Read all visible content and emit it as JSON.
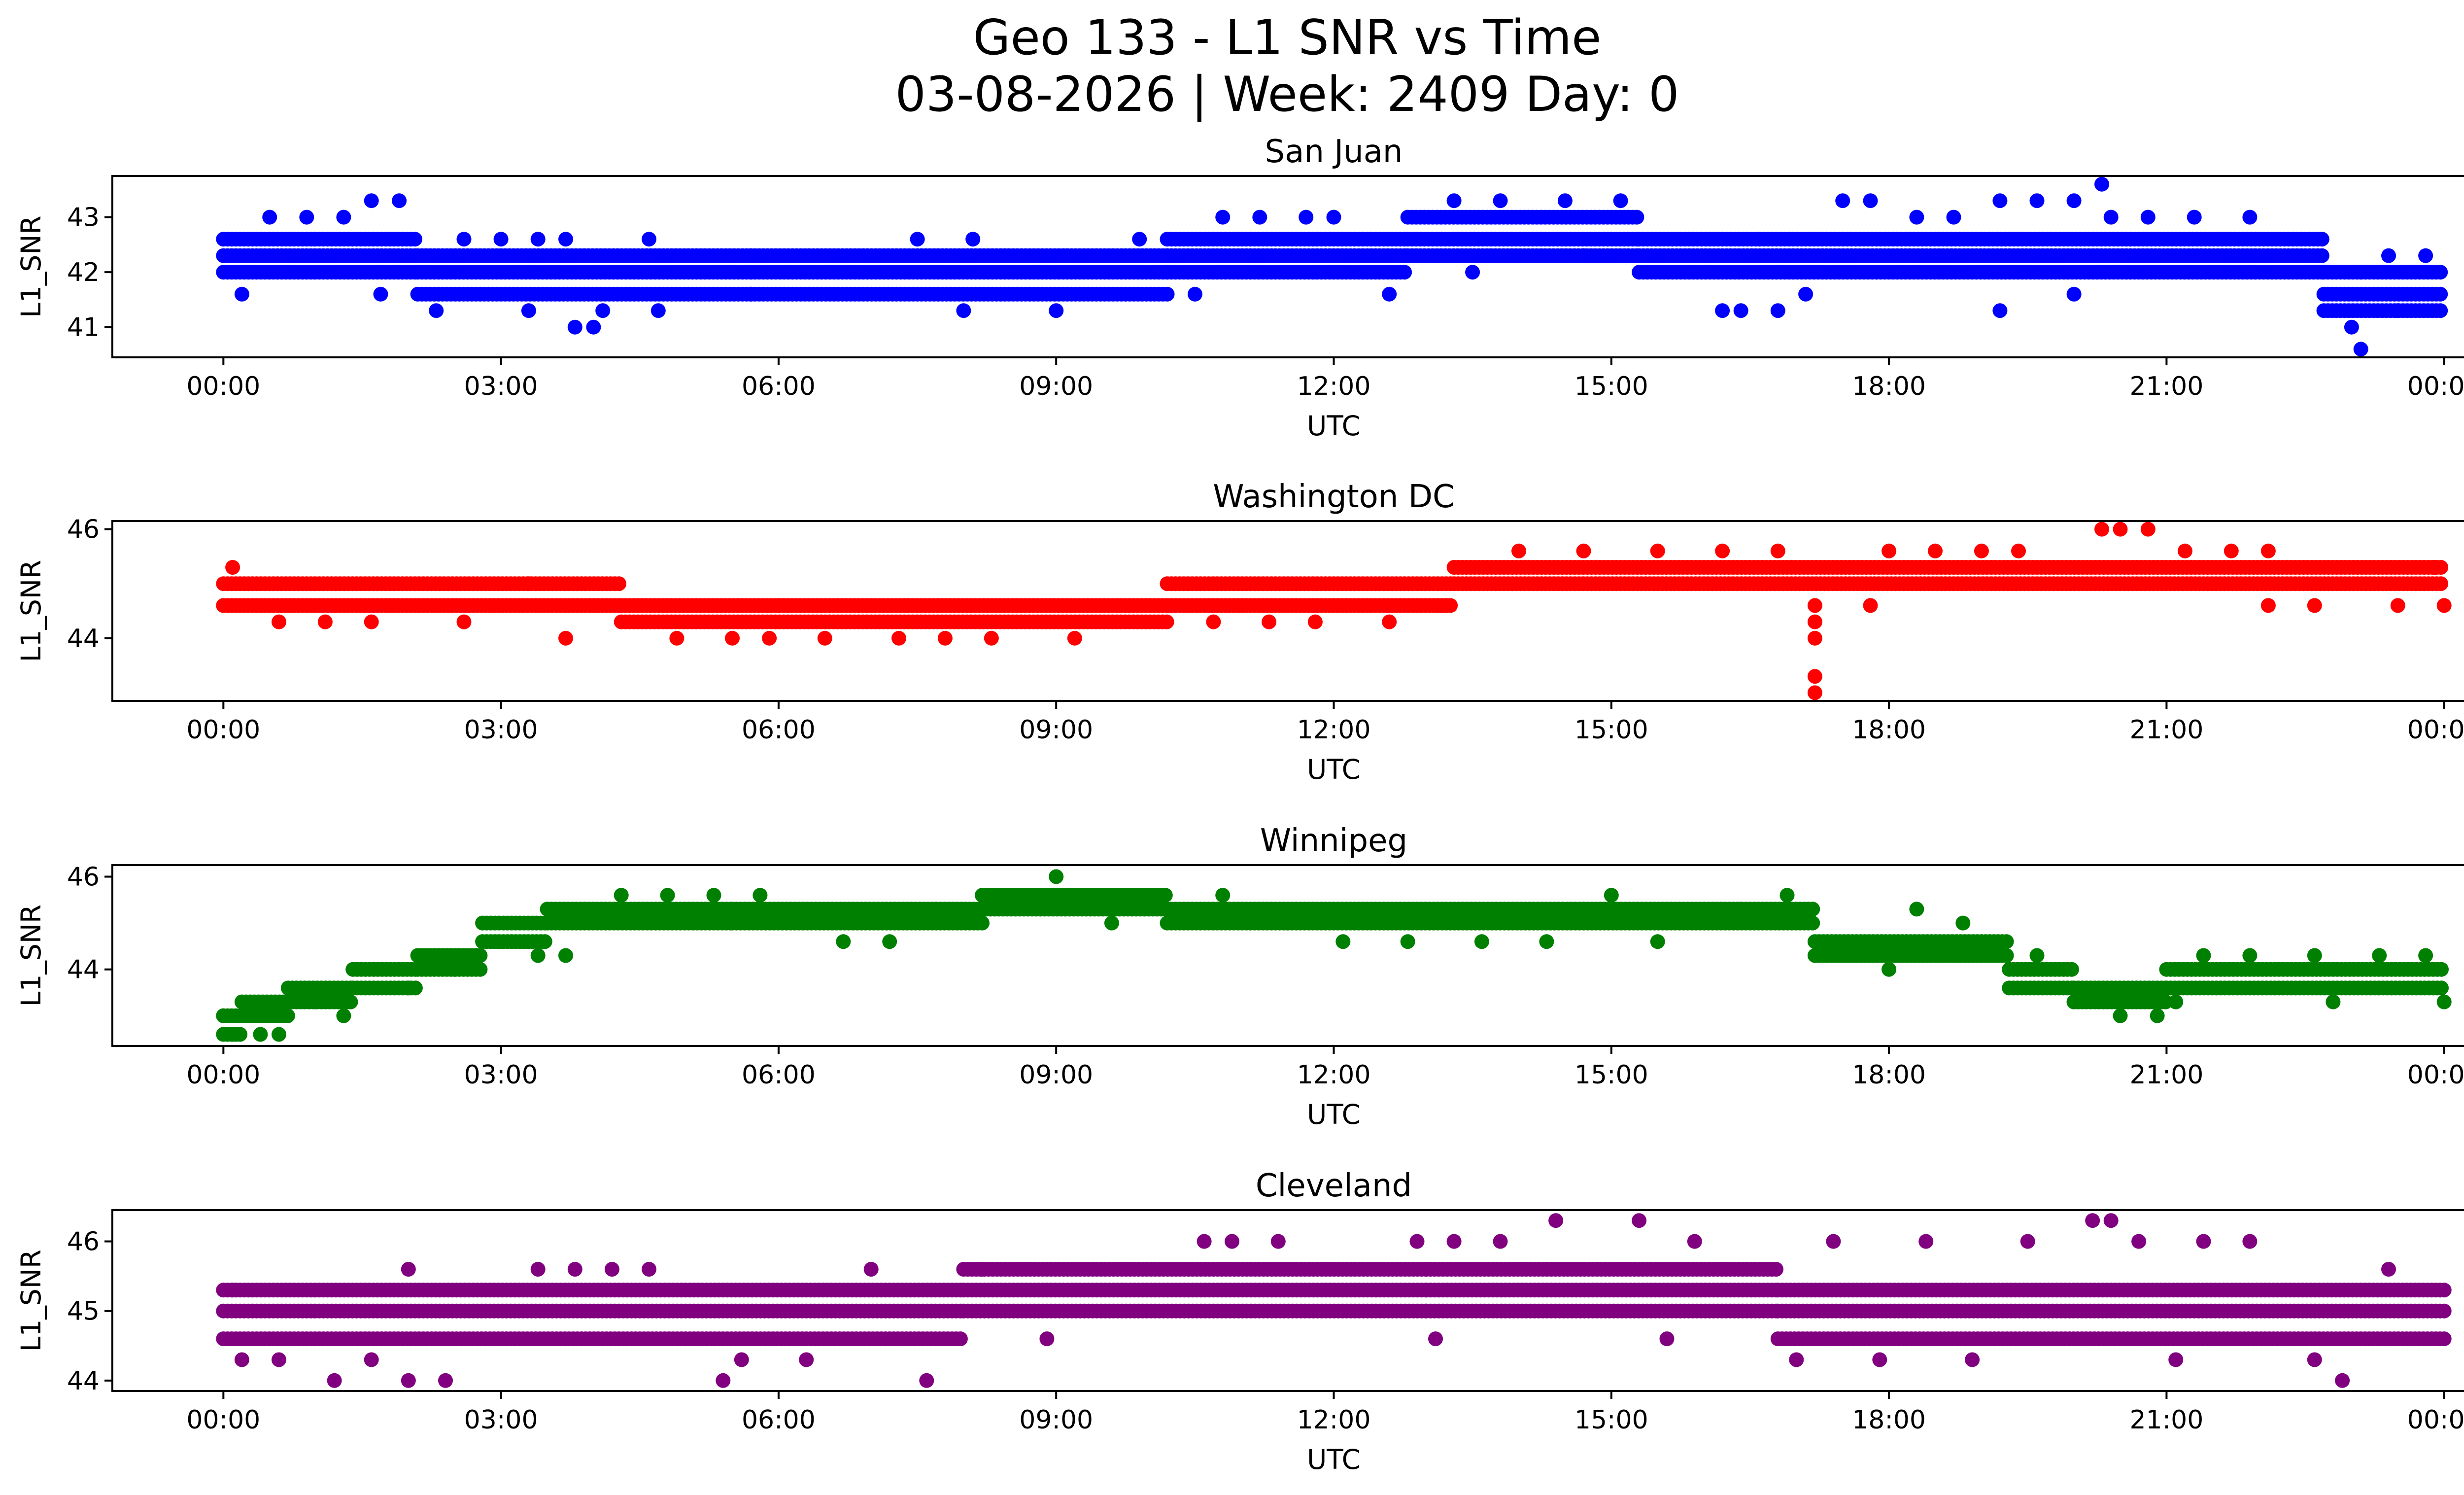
{
  "figure": {
    "title_line1": "Geo 133 - L1 SNR vs Time",
    "title_line2": "03-08-2026 | Week: 2409 Day: 0"
  },
  "chart_data": [
    {
      "type": "scatter",
      "title": "San Juan",
      "xlabel": "UTC",
      "ylabel": "L1_SNR",
      "color": "#0000ff",
      "xlim": [
        -1.2,
        25.2
      ],
      "ylim": [
        40.45,
        43.75
      ],
      "xticks": [
        0,
        3,
        6,
        9,
        12,
        15,
        18,
        21,
        24
      ],
      "xtick_labels": [
        "00:00",
        "03:00",
        "06:00",
        "09:00",
        "12:00",
        "15:00",
        "18:00",
        "21:00",
        "00:00"
      ],
      "yticks": [
        41,
        42,
        43
      ],
      "yticks_labels": [
        "41",
        "42",
        "43"
      ],
      "bands": [
        {
          "start": 0.0,
          "end": 2.1,
          "values": [
            42.0,
            42.3,
            42.6
          ]
        },
        {
          "start": 2.1,
          "end": 5.7,
          "values": [
            41.6,
            42.0,
            42.3
          ]
        },
        {
          "start": 5.7,
          "end": 10.2,
          "values": [
            41.6,
            42.0,
            42.3
          ]
        },
        {
          "start": 10.2,
          "end": 12.8,
          "values": [
            42.0,
            42.3,
            42.6
          ]
        },
        {
          "start": 12.8,
          "end": 15.3,
          "values": [
            42.3,
            42.6,
            43.0
          ]
        },
        {
          "start": 15.3,
          "end": 22.7,
          "values": [
            42.0,
            42.3,
            42.6
          ]
        },
        {
          "start": 22.7,
          "end": 24.0,
          "values": [
            41.3,
            41.6,
            42.0
          ]
        }
      ],
      "scatter": [
        [
          0.5,
          43.0
        ],
        [
          0.2,
          41.6
        ],
        [
          0.9,
          43.0
        ],
        [
          1.3,
          43.0
        ],
        [
          1.6,
          43.3
        ],
        [
          1.9,
          43.3
        ],
        [
          1.7,
          41.6
        ],
        [
          2.3,
          41.3
        ],
        [
          2.6,
          42.6
        ],
        [
          3.0,
          42.6
        ],
        [
          3.4,
          42.6
        ],
        [
          3.7,
          42.6
        ],
        [
          3.3,
          41.3
        ],
        [
          3.8,
          41.0
        ],
        [
          4.0,
          41.0
        ],
        [
          4.1,
          41.3
        ],
        [
          4.7,
          41.3
        ],
        [
          4.6,
          42.6
        ],
        [
          7.5,
          42.6
        ],
        [
          8.1,
          42.6
        ],
        [
          8.0,
          41.3
        ],
        [
          9.0,
          41.3
        ],
        [
          9.9,
          42.6
        ],
        [
          10.5,
          41.6
        ],
        [
          10.8,
          43.0
        ],
        [
          11.2,
          43.0
        ],
        [
          11.7,
          43.0
        ],
        [
          12.0,
          43.0
        ],
        [
          12.6,
          41.6
        ],
        [
          13.3,
          43.3
        ],
        [
          13.8,
          43.3
        ],
        [
          14.5,
          43.3
        ],
        [
          15.1,
          43.3
        ],
        [
          13.5,
          42.0
        ],
        [
          14.7,
          42.3
        ],
        [
          16.2,
          41.3
        ],
        [
          16.4,
          41.3
        ],
        [
          16.6,
          42.6
        ],
        [
          16.8,
          41.3
        ],
        [
          17.1,
          41.6
        ],
        [
          17.5,
          43.3
        ],
        [
          17.8,
          43.3
        ],
        [
          18.3,
          43.0
        ],
        [
          18.7,
          43.0
        ],
        [
          19.2,
          41.3
        ],
        [
          19.2,
          43.3
        ],
        [
          19.6,
          43.3
        ],
        [
          20.0,
          43.3
        ],
        [
          20.3,
          43.6
        ],
        [
          20.0,
          41.6
        ],
        [
          20.4,
          43.0
        ],
        [
          20.8,
          43.0
        ],
        [
          21.3,
          43.0
        ],
        [
          21.9,
          43.0
        ],
        [
          23.1,
          42.0
        ],
        [
          23.4,
          42.3
        ],
        [
          23.8,
          42.3
        ],
        [
          23.1,
          40.6
        ],
        [
          23.0,
          41.0
        ],
        [
          23.5,
          41.3
        ]
      ]
    },
    {
      "type": "scatter",
      "title": "Washington DC",
      "xlabel": "UTC",
      "ylabel": "L1_SNR",
      "color": "#ff0000",
      "xlim": [
        -1.2,
        25.2
      ],
      "ylim": [
        42.85,
        46.15
      ],
      "xticks": [
        0,
        3,
        6,
        9,
        12,
        15,
        18,
        21,
        24
      ],
      "xtick_labels": [
        "00:00",
        "03:00",
        "06:00",
        "09:00",
        "12:00",
        "15:00",
        "18:00",
        "21:00",
        "00:00"
      ],
      "yticks": [
        44,
        46
      ],
      "yticks_labels": [
        "44",
        "46"
      ],
      "bands": [
        {
          "start": 0.0,
          "end": 4.3,
          "values": [
            44.6,
            45.0
          ]
        },
        {
          "start": 4.3,
          "end": 10.2,
          "values": [
            44.3,
            44.6
          ]
        },
        {
          "start": 10.2,
          "end": 13.3,
          "values": [
            44.6,
            45.0
          ]
        },
        {
          "start": 13.3,
          "end": 24.0,
          "values": [
            45.0,
            45.3
          ]
        }
      ],
      "scatter": [
        [
          0.1,
          45.3
        ],
        [
          0.6,
          44.3
        ],
        [
          1.1,
          44.3
        ],
        [
          1.6,
          44.3
        ],
        [
          2.6,
          44.3
        ],
        [
          3.7,
          44.0
        ],
        [
          3.3,
          45.0
        ],
        [
          4.9,
          44.0
        ],
        [
          5.5,
          44.0
        ],
        [
          5.9,
          44.0
        ],
        [
          6.5,
          44.0
        ],
        [
          7.3,
          44.0
        ],
        [
          7.8,
          44.0
        ],
        [
          8.3,
          44.0
        ],
        [
          9.2,
          44.0
        ],
        [
          6.0,
          44.6
        ],
        [
          7.4,
          44.6
        ],
        [
          10.7,
          44.3
        ],
        [
          11.3,
          44.3
        ],
        [
          11.8,
          44.3
        ],
        [
          12.6,
          44.3
        ],
        [
          14.0,
          45.6
        ],
        [
          14.7,
          45.6
        ],
        [
          15.5,
          45.6
        ],
        [
          16.2,
          45.6
        ],
        [
          16.8,
          45.6
        ],
        [
          17.2,
          44.6
        ],
        [
          17.2,
          44.3
        ],
        [
          17.2,
          44.0
        ],
        [
          17.2,
          43.3
        ],
        [
          17.2,
          43.0
        ],
        [
          17.8,
          44.6
        ],
        [
          18.0,
          45.6
        ],
        [
          18.5,
          45.6
        ],
        [
          19.0,
          45.6
        ],
        [
          19.4,
          45.6
        ],
        [
          20.3,
          46.0
        ],
        [
          20.5,
          46.0
        ],
        [
          20.8,
          46.0
        ],
        [
          21.2,
          45.6
        ],
        [
          21.7,
          45.6
        ],
        [
          22.1,
          45.6
        ],
        [
          22.1,
          44.6
        ],
        [
          22.6,
          44.6
        ],
        [
          23.5,
          44.6
        ],
        [
          23.9,
          45.3
        ],
        [
          24.0,
          44.6
        ]
      ]
    },
    {
      "type": "scatter",
      "title": "Winnipeg",
      "xlabel": "UTC",
      "ylabel": "L1_SNR",
      "color": "#008000",
      "xlim": [
        -1.2,
        25.2
      ],
      "ylim": [
        42.35,
        46.25
      ],
      "xticks": [
        0,
        3,
        6,
        9,
        12,
        15,
        18,
        21,
        24
      ],
      "xtick_labels": [
        "00:00",
        "03:00",
        "06:00",
        "09:00",
        "12:00",
        "15:00",
        "18:00",
        "21:00",
        "00:00"
      ],
      "yticks": [
        44,
        46
      ],
      "yticks_labels": [
        "44",
        "46"
      ],
      "bands": [
        {
          "start": 0.0,
          "end": 0.2,
          "values": [
            42.6,
            43.0
          ]
        },
        {
          "start": 0.2,
          "end": 0.7,
          "values": [
            43.0,
            43.3
          ]
        },
        {
          "start": 0.7,
          "end": 1.4,
          "values": [
            43.3,
            43.6
          ]
        },
        {
          "start": 1.4,
          "end": 2.1,
          "values": [
            43.6,
            44.0
          ]
        },
        {
          "start": 2.1,
          "end": 2.8,
          "values": [
            44.0,
            44.3
          ]
        },
        {
          "start": 2.8,
          "end": 3.5,
          "values": [
            44.6,
            45.0
          ]
        },
        {
          "start": 3.5,
          "end": 5.5,
          "values": [
            45.0,
            45.3
          ]
        },
        {
          "start": 5.5,
          "end": 8.2,
          "values": [
            45.0,
            45.3
          ]
        },
        {
          "start": 8.2,
          "end": 10.2,
          "values": [
            45.3,
            45.6
          ]
        },
        {
          "start": 10.2,
          "end": 17.2,
          "values": [
            45.0,
            45.3
          ]
        },
        {
          "start": 17.2,
          "end": 19.3,
          "values": [
            44.3,
            44.6
          ]
        },
        {
          "start": 19.3,
          "end": 20.0,
          "values": [
            43.6,
            44.0
          ]
        },
        {
          "start": 20.0,
          "end": 21.0,
          "values": [
            43.3,
            43.6
          ]
        },
        {
          "start": 21.0,
          "end": 24.0,
          "values": [
            43.6,
            44.0
          ]
        }
      ],
      "scatter": [
        [
          0.0,
          43.0
        ],
        [
          0.1,
          42.6
        ],
        [
          0.4,
          42.6
        ],
        [
          0.6,
          42.6
        ],
        [
          1.0,
          43.3
        ],
        [
          1.3,
          43.0
        ],
        [
          2.0,
          43.6
        ],
        [
          2.5,
          44.0
        ],
        [
          3.4,
          44.3
        ],
        [
          3.7,
          44.3
        ],
        [
          3.9,
          45.3
        ],
        [
          4.3,
          45.6
        ],
        [
          4.8,
          45.6
        ],
        [
          5.3,
          45.6
        ],
        [
          5.8,
          45.6
        ],
        [
          6.7,
          44.6
        ],
        [
          7.2,
          44.6
        ],
        [
          7.7,
          45.3
        ],
        [
          8.8,
          45.6
        ],
        [
          9.0,
          46.0
        ],
        [
          9.4,
          45.6
        ],
        [
          9.6,
          45.0
        ],
        [
          10.8,
          45.6
        ],
        [
          11.5,
          45.0
        ],
        [
          12.1,
          44.6
        ],
        [
          12.8,
          44.6
        ],
        [
          13.6,
          44.6
        ],
        [
          14.3,
          44.6
        ],
        [
          14.7,
          45.3
        ],
        [
          15.0,
          45.6
        ],
        [
          15.5,
          44.6
        ],
        [
          16.4,
          45.3
        ],
        [
          16.9,
          45.6
        ],
        [
          18.3,
          45.3
        ],
        [
          18.0,
          44.0
        ],
        [
          18.8,
          45.0
        ],
        [
          19.6,
          44.3
        ],
        [
          20.0,
          43.3
        ],
        [
          20.5,
          43.0
        ],
        [
          20.9,
          43.0
        ],
        [
          21.1,
          43.3
        ],
        [
          21.4,
          44.3
        ],
        [
          21.9,
          44.3
        ],
        [
          22.6,
          44.3
        ],
        [
          22.8,
          43.3
        ],
        [
          23.3,
          44.3
        ],
        [
          23.8,
          44.3
        ],
        [
          24.0,
          43.3
        ]
      ]
    },
    {
      "type": "scatter",
      "title": "Cleveland",
      "xlabel": "UTC",
      "ylabel": "L1_SNR",
      "color": "#800080",
      "xlim": [
        -1.2,
        25.2
      ],
      "ylim": [
        43.85,
        46.45
      ],
      "xticks": [
        0,
        3,
        6,
        9,
        12,
        15,
        18,
        21,
        24
      ],
      "xtick_labels": [
        "00:00",
        "03:00",
        "06:00",
        "09:00",
        "12:00",
        "15:00",
        "18:00",
        "21:00",
        "00:00"
      ],
      "yticks": [
        44,
        45,
        46
      ],
      "yticks_labels": [
        "44",
        "45",
        "46"
      ],
      "bands": [
        {
          "start": 0.0,
          "end": 8.0,
          "values": [
            44.6,
            45.0,
            45.3
          ]
        },
        {
          "start": 8.0,
          "end": 13.0,
          "values": [
            45.0,
            45.3,
            45.6
          ]
        },
        {
          "start": 13.0,
          "end": 16.8,
          "values": [
            45.0,
            45.3,
            45.6
          ]
        },
        {
          "start": 16.8,
          "end": 24.0,
          "values": [
            44.6,
            45.0,
            45.3
          ]
        }
      ],
      "scatter": [
        [
          0.1,
          45.3
        ],
        [
          0.2,
          44.3
        ],
        [
          0.6,
          44.3
        ],
        [
          1.2,
          44.0
        ],
        [
          1.6,
          44.3
        ],
        [
          2.0,
          44.0
        ],
        [
          2.0,
          45.6
        ],
        [
          2.4,
          44.0
        ],
        [
          3.4,
          45.6
        ],
        [
          3.8,
          45.6
        ],
        [
          4.2,
          45.6
        ],
        [
          4.6,
          45.6
        ],
        [
          5.4,
          44.0
        ],
        [
          5.6,
          44.3
        ],
        [
          6.3,
          44.3
        ],
        [
          7.0,
          45.6
        ],
        [
          7.6,
          44.0
        ],
        [
          8.2,
          45.6
        ],
        [
          8.9,
          44.6
        ],
        [
          10.6,
          46.0
        ],
        [
          10.9,
          46.0
        ],
        [
          11.4,
          46.0
        ],
        [
          12.9,
          46.0
        ],
        [
          13.3,
          46.0
        ],
        [
          13.8,
          46.0
        ],
        [
          14.4,
          46.3
        ],
        [
          15.3,
          46.3
        ],
        [
          15.9,
          46.0
        ],
        [
          13.1,
          44.6
        ],
        [
          15.6,
          44.6
        ],
        [
          17.0,
          44.3
        ],
        [
          17.4,
          46.0
        ],
        [
          17.9,
          44.3
        ],
        [
          18.4,
          46.0
        ],
        [
          18.9,
          44.3
        ],
        [
          19.5,
          46.0
        ],
        [
          20.2,
          46.3
        ],
        [
          20.4,
          46.3
        ],
        [
          20.7,
          46.0
        ],
        [
          21.1,
          44.3
        ],
        [
          21.4,
          46.0
        ],
        [
          21.9,
          46.0
        ],
        [
          22.6,
          44.3
        ],
        [
          22.9,
          44.0
        ],
        [
          23.4,
          45.6
        ]
      ]
    }
  ]
}
